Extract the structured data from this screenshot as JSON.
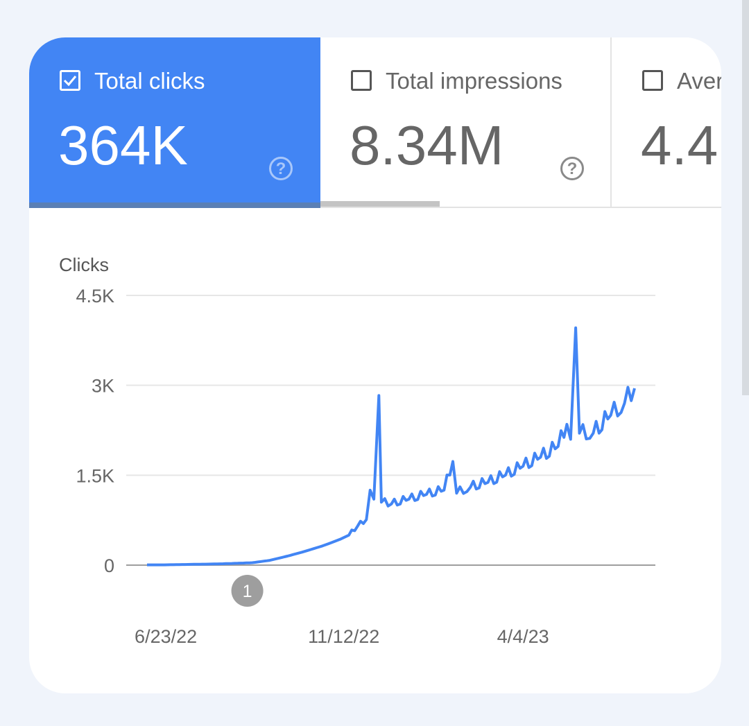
{
  "tabs": [
    {
      "label": "Total clicks",
      "value": "364K",
      "checked": true
    },
    {
      "label": "Total impressions",
      "value": "8.34M",
      "checked": false
    },
    {
      "label": "Aver",
      "value": "4.4",
      "checked": false
    }
  ],
  "help_symbol": "?",
  "colors": {
    "accent": "#4285f4",
    "line": "#4285f4",
    "annotation": "#9e9e9e"
  },
  "chart_data": {
    "type": "line",
    "ylabel": "Clicks",
    "ylim": [
      0,
      4500
    ],
    "yticks": [
      {
        "v": 0,
        "label": "0"
      },
      {
        "v": 1500,
        "label": "1.5K"
      },
      {
        "v": 3000,
        "label": "3K"
      },
      {
        "v": 4500,
        "label": "4.5K"
      }
    ],
    "xlim": [
      "2022-06-08",
      "2023-07-02"
    ],
    "xticks": [
      {
        "date": "2022-06-23",
        "label": "6/23/22"
      },
      {
        "date": "2022-11-12",
        "label": "11/12/22"
      },
      {
        "date": "2023-04-04",
        "label": "4/4/23"
      }
    ],
    "grid": true,
    "annotations": [
      {
        "date": "2022-08-27",
        "label": "1"
      }
    ],
    "series": [
      {
        "points": [
          [
            "2022-06-08",
            5
          ],
          [
            "2022-06-22",
            5
          ],
          [
            "2022-07-06",
            10
          ],
          [
            "2022-07-20",
            15
          ],
          [
            "2022-08-03",
            20
          ],
          [
            "2022-08-17",
            30
          ],
          [
            "2022-08-31",
            40
          ],
          [
            "2022-09-14",
            80
          ],
          [
            "2022-09-28",
            150
          ],
          [
            "2022-10-12",
            230
          ],
          [
            "2022-10-26",
            320
          ],
          [
            "2022-11-09",
            430
          ],
          [
            "2022-11-16",
            500
          ],
          [
            "2022-11-23",
            650
          ],
          [
            "2022-11-30",
            760
          ],
          [
            "2022-12-03",
            1250
          ],
          [
            "2022-12-06",
            1100
          ],
          [
            "2022-12-10",
            2830
          ],
          [
            "2022-12-12",
            1050
          ],
          [
            "2022-12-20",
            1020
          ],
          [
            "2023-01-03",
            1100
          ],
          [
            "2023-01-17",
            1180
          ],
          [
            "2023-01-31",
            1250
          ],
          [
            "2023-02-07",
            1730
          ],
          [
            "2023-02-10",
            1200
          ],
          [
            "2023-02-21",
            1300
          ],
          [
            "2023-03-07",
            1380
          ],
          [
            "2023-03-21",
            1500
          ],
          [
            "2023-04-04",
            1650
          ],
          [
            "2023-04-18",
            1800
          ],
          [
            "2023-05-02",
            1980
          ],
          [
            "2023-05-09",
            2350
          ],
          [
            "2023-05-12",
            2100
          ],
          [
            "2023-05-16",
            3960
          ],
          [
            "2023-05-19",
            2200
          ],
          [
            "2023-05-30",
            2200
          ],
          [
            "2023-06-13",
            2500
          ],
          [
            "2023-06-24",
            2700
          ],
          [
            "2023-07-02",
            2950
          ]
        ]
      }
    ]
  }
}
